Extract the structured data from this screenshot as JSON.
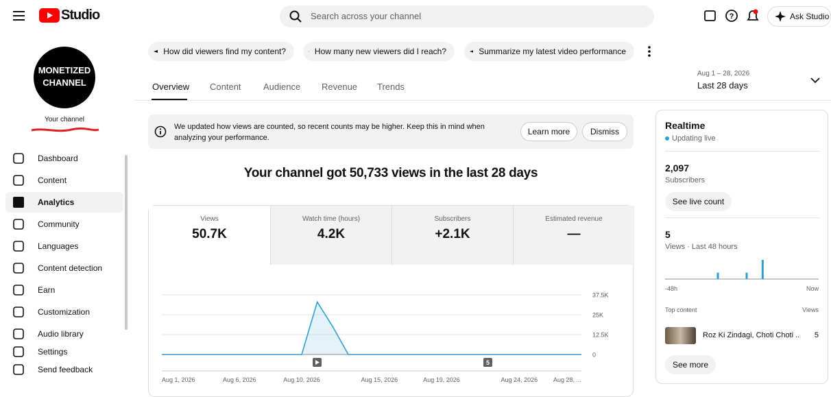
{
  "header": {
    "logo": "Studio",
    "search": "Search across your channel",
    "ask": "Ask Studio"
  },
  "channel": {
    "avatar": [
      "MONETIZED",
      "CHANNEL"
    ],
    "label": "Your channel"
  },
  "nav": [
    "Dashboard",
    "Content",
    "Analytics",
    "Community",
    "Languages",
    "Content detection",
    "Earn",
    "Customization",
    "Audio library",
    "Settings",
    "Send feedback"
  ],
  "prompts": [
    "How did viewers find my content?",
    "How many new viewers did I reach?",
    "Summarize my latest video performance"
  ],
  "tabs": [
    "Overview",
    "Content",
    "Audience",
    "Revenue",
    "Trends"
  ],
  "date_range": {
    "range": "Aug 1 – 28, 2026",
    "label": "Last 28 days"
  },
  "notice": {
    "text": "We updated how views are counted, so recent counts may be higher. Keep this in mind when analyzing your performance.",
    "learn": "Learn more",
    "dismiss": "Dismiss"
  },
  "headline": "Your channel got 50,733 views in the last 28 days",
  "metrics": [
    {
      "label": "Views",
      "value": "50.7K"
    },
    {
      "label": "Watch time (hours)",
      "value": "4.2K"
    },
    {
      "label": "Subscribers",
      "value": "+2.1K"
    },
    {
      "label": "Estimated revenue",
      "value": "—"
    }
  ],
  "realtime": {
    "title": "Realtime",
    "status": "Updating live",
    "subs": "2,097",
    "subs_label": "Subscribers",
    "live_btn": "See live count",
    "views": "5",
    "views_label": "Views · Last 48 hours",
    "top": "Top content",
    "top_col": "Views",
    "video": "Roz Ki Zindagi, Choti Choti ...",
    "video_views": "5",
    "more": "See more"
  },
  "chart_data": [
    {
      "type": "line",
      "color": "#2d9fd0",
      "categories": [
        "Aug 1, 2026",
        null,
        null,
        null,
        null,
        "Aug 6, 2026",
        null,
        null,
        null,
        "Aug 10, 2026",
        null,
        null,
        null,
        null,
        "Aug 15, 2026",
        null,
        null,
        null,
        "Aug 19, 2026",
        null,
        null,
        null,
        null,
        "Aug 24, 2026",
        null,
        null,
        null,
        "Aug 28, ..."
      ],
      "values": [
        0,
        0,
        0,
        0,
        0,
        0,
        0,
        0,
        0,
        0,
        33000,
        17500,
        0,
        0,
        0,
        0,
        0,
        0,
        0,
        0,
        0,
        0,
        0,
        0,
        0,
        0,
        0,
        0
      ],
      "ylim": [
        0,
        37500
      ],
      "yticks": [
        0,
        {
          "value": 12500,
          "label": "12.5K"
        },
        {
          "value": 25000,
          "label": "25K"
        },
        {
          "value": 37500,
          "label": "37.5K"
        }
      ],
      "grid": true,
      "annotation": "5"
    },
    {
      "type": "bar",
      "color": "#2d9fd0",
      "categories": [
        "-48h",
        null,
        null,
        null,
        null,
        null,
        null,
        null,
        null,
        null,
        null,
        null,
        null,
        null,
        null,
        null,
        null,
        null,
        null,
        null,
        null,
        null,
        null,
        null,
        null,
        null,
        null,
        null,
        null,
        null,
        null,
        null,
        null,
        null,
        null,
        null,
        null,
        null,
        null,
        null,
        null,
        null,
        null,
        null,
        null,
        null,
        null,
        "Now"
      ],
      "values": [
        0,
        0,
        0,
        0,
        0,
        0,
        0,
        0,
        0,
        0,
        0,
        0,
        0,
        0,
        0,
        0,
        1,
        0,
        0,
        0,
        0,
        0,
        0,
        0,
        0,
        1,
        0,
        0,
        0,
        0,
        3,
        0,
        0,
        0,
        0,
        0,
        0,
        0,
        0,
        0,
        0,
        0,
        0,
        0,
        0,
        0,
        0,
        0
      ]
    }
  ]
}
